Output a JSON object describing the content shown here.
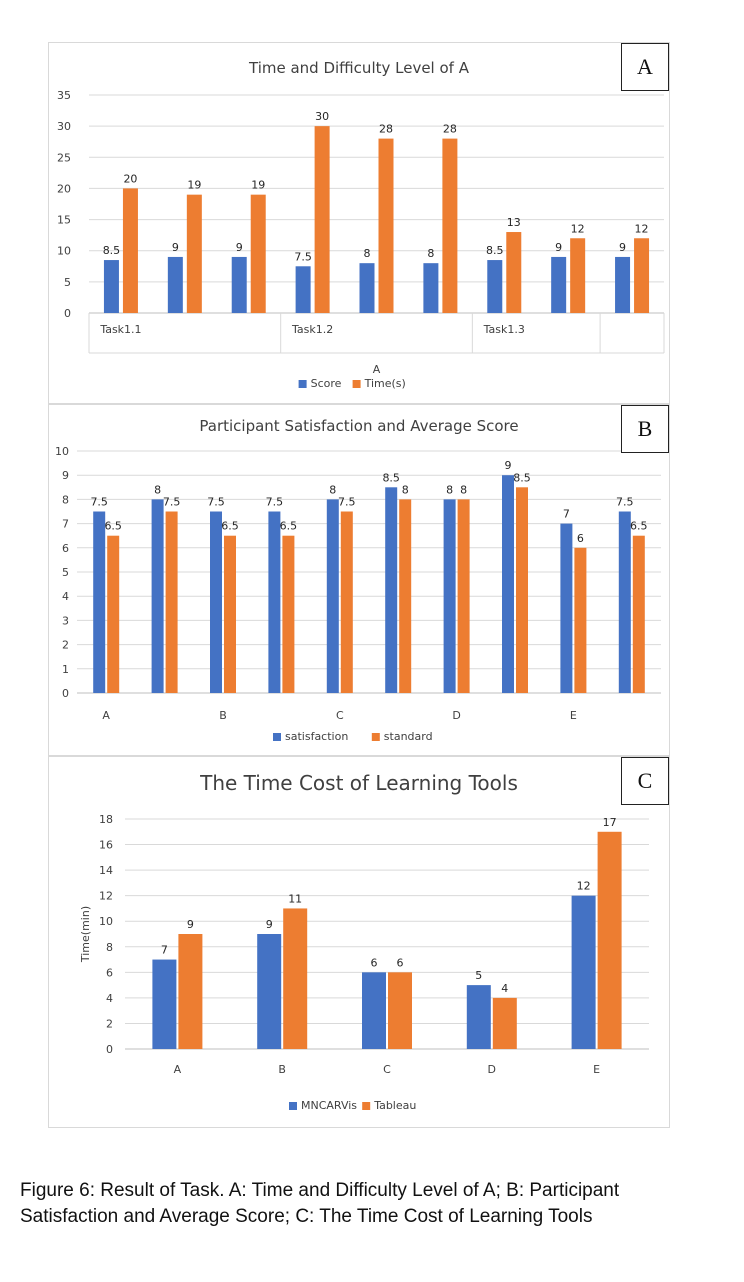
{
  "colors": {
    "series1": "#4472c4",
    "series2": "#ed7d31",
    "grid": "#d9d9d9",
    "axis": "#bfbfbf"
  },
  "panels": {
    "A": {
      "letter": "A"
    },
    "B": {
      "letter": "B"
    },
    "C": {
      "letter": "C"
    }
  },
  "caption": "Figure 6: Result of Task. A: Time and Difficulty Level of A; B: Participant Satisfaction and Average Score; C: The Time Cost of Learning Tools",
  "chart_data": [
    {
      "type": "bar",
      "title": "Time and Difficulty Level of A",
      "xlabel": "A",
      "ylabel": "",
      "ylim": [
        0,
        35
      ],
      "ytick_step": 5,
      "categories": [
        "",
        "",
        "",
        "",
        "",
        "",
        "",
        "",
        ""
      ],
      "group_labels": [
        "Task1.1",
        "Task1.2",
        "Task1.3",
        "",
        ""
      ],
      "series": [
        {
          "name": "Score",
          "values": [
            8.5,
            9,
            9,
            7.5,
            8,
            8,
            8.5,
            9,
            9
          ]
        },
        {
          "name": "Time(s)",
          "values": [
            20,
            19,
            19,
            30,
            28,
            28,
            13,
            12,
            12
          ]
        }
      ],
      "grid": true,
      "legend": "bottom"
    },
    {
      "type": "bar",
      "title": "Participant Satisfaction and Average Score",
      "xlabel": "",
      "ylabel": "",
      "ylim": [
        0,
        10
      ],
      "ytick_step": 1,
      "categories": [
        "A",
        "",
        "B",
        "",
        "C",
        "",
        "D",
        "",
        "E",
        ""
      ],
      "series": [
        {
          "name": "satisfaction",
          "values": [
            7.5,
            8,
            7.5,
            7.5,
            8,
            8.5,
            8,
            9,
            7,
            7.5
          ]
        },
        {
          "name": "standard",
          "values": [
            6.5,
            7.5,
            6.5,
            6.5,
            7.5,
            8,
            8,
            8.5,
            6,
            6.5
          ]
        }
      ],
      "grid": true,
      "legend": "bottom"
    },
    {
      "type": "bar",
      "title": "The Time Cost of Learning Tools",
      "xlabel": "",
      "ylabel": "Time(min)",
      "ylim": [
        0,
        18
      ],
      "ytick_step": 2,
      "categories": [
        "A",
        "B",
        "C",
        "D",
        "E"
      ],
      "series": [
        {
          "name": "MNCARVis",
          "values": [
            7,
            9,
            6,
            5,
            12
          ]
        },
        {
          "name": "Tableau",
          "values": [
            9,
            11,
            6,
            4,
            17
          ]
        }
      ],
      "grid": true,
      "legend": "bottom"
    }
  ]
}
